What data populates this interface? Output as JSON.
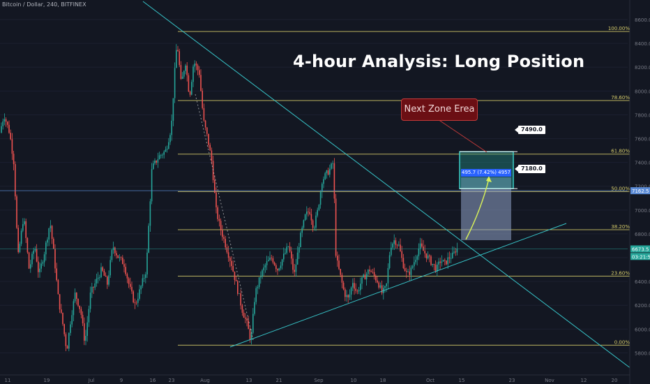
{
  "header": {
    "symbol_text": "Bitcoin / Dollar, 240, BITFINEX"
  },
  "annotations": {
    "headline": "4-hour Analysis: Long Position",
    "callout": "Next Zone Erea",
    "measure_label": "495.7 (7.42%) 4957",
    "target_upper": "7490.0",
    "target_lower": "7180.0"
  },
  "colors": {
    "background": "#131722",
    "candle_up": "#26a69a",
    "candle_down": "#ef5350",
    "fib_line": "#d6cc6a",
    "trendline": "#37c5c9",
    "target_box": "#26a69a",
    "projection_box": "#8fa2c8",
    "arrow": "#d7f05a",
    "price_axis_text": "#787b86"
  },
  "icons": {
    "projection_arrow": "curved-arrow-icon"
  },
  "chart_data": {
    "type": "candlestick",
    "title": "",
    "symbol": "Bitcoin / Dollar, 240, BITFINEX",
    "ylim": [
      5650,
      8700
    ],
    "y_ticks": [
      5800,
      6000,
      6200,
      6400,
      6600,
      6800,
      7000,
      7200,
      7400,
      7600,
      7800,
      8000,
      8200,
      8400,
      8600
    ],
    "x_ticks": [
      "11",
      "19",
      "Jul",
      "9",
      "16",
      "23",
      "Aug",
      "13",
      "21",
      "Sep",
      "10",
      "18",
      "Oct",
      "15",
      "23",
      "Nov",
      "12",
      "20"
    ],
    "fib_levels": [
      {
        "label": "100.00%",
        "value": 8500
      },
      {
        "label": "78.60%",
        "value": 7920
      },
      {
        "label": "61.80%",
        "value": 7470
      },
      {
        "label": "50.00%",
        "value": 7155
      },
      {
        "label": "38.20%",
        "value": 6835
      },
      {
        "label": "23.60%",
        "value": 6445
      },
      {
        "label": "0.00%",
        "value": 5865
      }
    ],
    "price_labels": [
      {
        "text": "7162.5",
        "value": 7162.5,
        "color": "#5b8bd6"
      },
      {
        "text": "6673.5",
        "value": 6673.5,
        "color": "#26a69a"
      },
      {
        "text": "03:21:57",
        "value": 6610,
        "color": "#26a69a"
      }
    ],
    "highs_lows": {
      "high": 8500,
      "low": 5780,
      "last": 6673.5
    },
    "target_zone": [
      7180.0,
      7490.0
    ],
    "projection_move": {
      "points": 495.7,
      "percent": 7.42,
      "bars": 4957
    }
  }
}
